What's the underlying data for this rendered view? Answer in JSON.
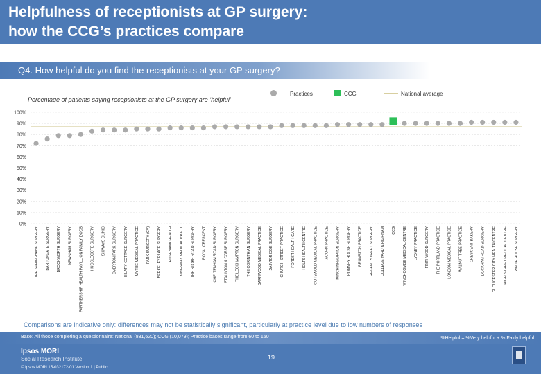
{
  "header": {
    "title_line1": "Helpfulness of receptionists at GP surgery:",
    "title_line2": "how the CCG’s practices compare"
  },
  "question": "Q4. How helpful do you find the receptionists at your GP surgery?",
  "legend": {
    "practices": "Practices",
    "ccg": "CCG",
    "national": "National average"
  },
  "colors": {
    "practice_dot": "#aaaaaa",
    "ccg_bar": "#2dbf58",
    "national_line": "#d8cfa0",
    "brand_blue": "#4d7ab6",
    "note_blue": "#4a7ab0"
  },
  "chart_data": {
    "type": "scatter",
    "title": "Percentage of patients saying receptionists at the GP surgery are ‘helpful’",
    "ylabel": "",
    "xlabel": "",
    "ylim": [
      0,
      100
    ],
    "yticks": [
      "0%",
      "10%",
      "20%",
      "30%",
      "40%",
      "50%",
      "60%",
      "70%",
      "80%",
      "90%",
      "100%"
    ],
    "national_average": 87,
    "ccg_category": "CCG",
    "categories": [
      "THE SPRINGBANK SURGERY",
      "BARTONGATE SURGERY",
      "BROCKWORTH SURGERY",
      "NEWNHAM SURGERY",
      "PARTNERSHIP HEALTH PAVILLION FAMILY DOCS",
      "HUCCLECOTE SURGERY",
      "SIXWAYS CLINIC",
      "OVERTON PARK SURGERY",
      "HILARY COTTAGE SURGERY",
      "MYTHE MEDICAL PRACTICE",
      "PARK SURGERY (CV)",
      "BERKELEY PLACE SURGERY",
      "ROSEBANK HEALTH",
      "KINGSWAY MEDICAL PRACT",
      "THE STOKE ROAD SURGERY",
      "ROYAL CRESCENT",
      "CHELTENHAM ROAD SURGERY",
      "STAUNTON & CORSE SURGERY",
      "THE LECKHAMPTON SURGERY",
      "THE CORINTHIAN SURGERY",
      "BARNWOOD MEDICAL PRACTICE",
      "SAINTBRIDGE SURGERY",
      "CHURCH STREET PRACTICE",
      "FOREST HEALTH CARE",
      "HOLTS HEALTH CENTRE",
      "COTSWOLD MEDICAL PRACTICE",
      "ACORN PRACTICE",
      "MINCHINHAMPTON SURGERY",
      "ROMNEY HOUSE SURGERY",
      "BRUNSTON PRACTICE",
      "REGENT STREET SURGERY",
      "COLLEGE YARD & HIGHNAM",
      "CCG",
      "WINCHCOMBE MEDICAL CENTRE",
      "LYDNEY PRACTICE",
      "FRITHWOOD SURGERY",
      "THE PORTLAND PRACTICE",
      "LONDON MEDICAL PRACTICE",
      "WALNUT TREE PRACTICE",
      "CRESCENT BAKERY",
      "DOCKHAM ROAD SURGERY",
      "GLOUCESTER CITY HEALTH CENTRE",
      "HIGH STREET MEDICAL CENTRE",
      "WHITE HOUSE SURGERY"
    ],
    "values": [
      72,
      76,
      79,
      79,
      80,
      83,
      84,
      84,
      84,
      85,
      85,
      85,
      86,
      86,
      86,
      86,
      87,
      87,
      87,
      87,
      87,
      87,
      88,
      88,
      88,
      88,
      88,
      89,
      89,
      89,
      89,
      89,
      92,
      90,
      90,
      90,
      90,
      90,
      90,
      91,
      91,
      91,
      91,
      91
    ]
  },
  "notes": {
    "comparison": "Comparisons are indicative only: differences may not be statistically significant, particularly at practice level due to low numbers of responses",
    "base": "Base: All those completing a questionnaire: National (831,620); CCG (10,079); Practice bases range from 60 to 150",
    "definition": "%Helpful = %Very helpful + % Fairly helpful"
  },
  "footer": {
    "logo_main": "Ipsos MORI",
    "logo_sub": "Social Research Institute",
    "copyright": "© Ipsos MORI    15-032172-01 Version 1 | Public",
    "page_number": "19"
  }
}
